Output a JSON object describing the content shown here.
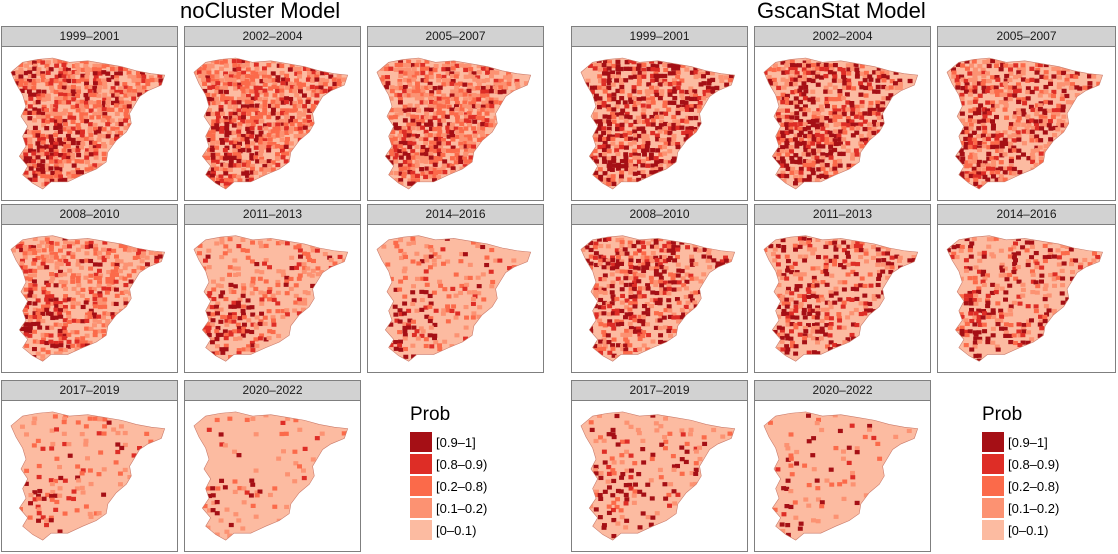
{
  "models": [
    {
      "key": "nocluster",
      "title": "noCluster Model",
      "panels": [
        {
          "period": "1999–2001",
          "dist": [
            0.12,
            0.1,
            0.22,
            0.22,
            0.34
          ],
          "hot_region": "southwest",
          "hot_strength": 1.0
        },
        {
          "period": "2002–2004",
          "dist": [
            0.1,
            0.1,
            0.24,
            0.22,
            0.34
          ],
          "hot_region": "southwest",
          "hot_strength": 1.0
        },
        {
          "period": "2005–2007",
          "dist": [
            0.08,
            0.08,
            0.22,
            0.24,
            0.38
          ],
          "hot_region": "southwest",
          "hot_strength": 0.9
        },
        {
          "period": "2008–2010",
          "dist": [
            0.06,
            0.06,
            0.16,
            0.2,
            0.52
          ],
          "hot_region": "southwest",
          "hot_strength": 0.9
        },
        {
          "period": "2011–2013",
          "dist": [
            0.03,
            0.04,
            0.1,
            0.14,
            0.69
          ],
          "hot_region": "southwest",
          "hot_strength": 0.7
        },
        {
          "period": "2014–2016",
          "dist": [
            0.01,
            0.02,
            0.06,
            0.1,
            0.81
          ],
          "hot_region": "southwest",
          "hot_strength": 0.5
        },
        {
          "period": "2017–2019",
          "dist": [
            0.005,
            0.01,
            0.03,
            0.07,
            0.885
          ],
          "hot_region": "southwest",
          "hot_strength": 0.35
        },
        {
          "period": "2020–2022",
          "dist": [
            0.003,
            0.005,
            0.02,
            0.05,
            0.922
          ],
          "hot_region": "southwest",
          "hot_strength": 0.2
        }
      ]
    },
    {
      "key": "gscanstat",
      "title": "GscanStat Model",
      "panels": [
        {
          "period": "1999–2001",
          "dist": [
            0.26,
            0.08,
            0.1,
            0.16,
            0.4
          ],
          "hot_region": "southwest",
          "hot_strength": 0.6
        },
        {
          "period": "2002–2004",
          "dist": [
            0.22,
            0.08,
            0.1,
            0.16,
            0.44
          ],
          "hot_region": "southwest",
          "hot_strength": 0.6
        },
        {
          "period": "2005–2007",
          "dist": [
            0.18,
            0.07,
            0.1,
            0.18,
            0.47
          ],
          "hot_region": "southwest",
          "hot_strength": 0.5
        },
        {
          "period": "2008–2010",
          "dist": [
            0.2,
            0.06,
            0.08,
            0.14,
            0.52
          ],
          "hot_region": "southwest",
          "hot_strength": 0.4
        },
        {
          "period": "2011–2013",
          "dist": [
            0.14,
            0.05,
            0.06,
            0.12,
            0.63
          ],
          "hot_region": "southwest",
          "hot_strength": 0.4
        },
        {
          "period": "2014–2016",
          "dist": [
            0.1,
            0.04,
            0.05,
            0.1,
            0.71
          ],
          "hot_region": "southwest",
          "hot_strength": 0.35
        },
        {
          "period": "2017–2019",
          "dist": [
            0.06,
            0.02,
            0.03,
            0.06,
            0.83
          ],
          "hot_region": "southwest",
          "hot_strength": 0.3
        },
        {
          "period": "2020–2022",
          "dist": [
            0.02,
            0.01,
            0.02,
            0.04,
            0.91
          ],
          "hot_region": "southwest",
          "hot_strength": 0.2
        }
      ]
    }
  ],
  "legend": {
    "title": "Prob",
    "items": [
      {
        "label": "[0.9–1]",
        "color": "#a50f15"
      },
      {
        "label": "[0.8–0.9)",
        "color": "#de2d26"
      },
      {
        "label": "[0.2–0.8)",
        "color": "#fb6a4a"
      },
      {
        "label": "[0.1–0.2)",
        "color": "#fc9272"
      },
      {
        "label": "[0–0.1)",
        "color": "#fcbba1"
      }
    ]
  }
}
